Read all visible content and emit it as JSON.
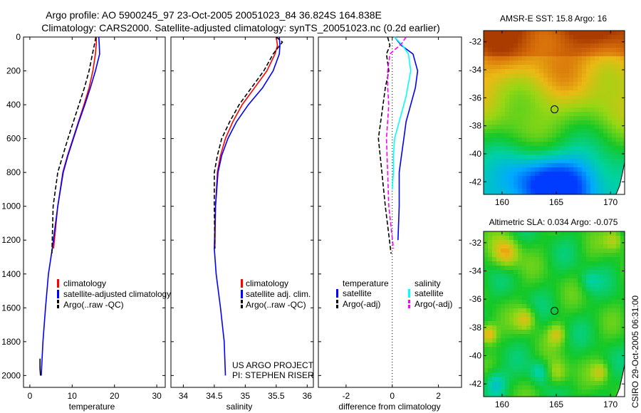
{
  "header": {
    "line1": "Argo profile: AO 5900245_97 23-Oct-2005 20051023_84 36.824S 164.838E",
    "line2": "Climatology: CARS2000. Satellite-adjusted climatology: synTS_20051023.nc (0.2d earlier)"
  },
  "side_label": "CSIRO 29-Oct-2005 06:31:00",
  "colors": {
    "climatology": "#ff0000",
    "satellite": "#0000ff",
    "argo": "#000000",
    "salinity_satellite": "#00ffff",
    "salinity_argo": "#ff00ff"
  },
  "chart_data": [
    {
      "type": "line",
      "xlabel": "temperature",
      "ylabel": "",
      "xlim": [
        -1.5,
        32
      ],
      "ylim": [
        2070,
        0
      ],
      "xticks": [
        0,
        10,
        20,
        30
      ],
      "yticks": [
        0,
        200,
        400,
        600,
        800,
        1000,
        1200,
        1400,
        1600,
        1800,
        2000
      ],
      "legend": [
        "climatology",
        "satellite-adjusted climatology",
        "Argo(..raw -QC)"
      ],
      "series": [
        {
          "name": "climatology",
          "color": "#ff0000",
          "dash": "",
          "x": [
            15.7,
            15.7,
            15.5,
            14.9,
            14.0,
            12.8,
            11.5,
            10.2,
            8.9,
            7.8,
            6.6,
            5.6
          ],
          "y": [
            0,
            40,
            100,
            200,
            300,
            400,
            500,
            600,
            700,
            800,
            1000,
            1250
          ]
        },
        {
          "name": "satellite-adjusted climatology",
          "color": "#0000ff",
          "dash": "",
          "x": [
            16.3,
            16.4,
            16.5,
            15.5,
            14.3,
            13.0,
            11.6,
            10.3,
            9.0,
            7.9,
            6.6,
            5.3,
            4.4,
            3.7,
            3.1,
            2.7
          ],
          "y": [
            0,
            40,
            100,
            200,
            300,
            400,
            500,
            600,
            700,
            800,
            1000,
            1250,
            1400,
            1600,
            1800,
            2000
          ]
        },
        {
          "name": "Argo(..raw -QC)",
          "color": "#000000",
          "dash": "6,3",
          "x": [
            15.6,
            15.3,
            14.8,
            14.0,
            12.9,
            11.6,
            10.3,
            9.0,
            7.8,
            6.6,
            5.5,
            5.2
          ],
          "y": [
            0,
            40,
            100,
            200,
            300,
            400,
            500,
            600,
            700,
            800,
            1000,
            1290
          ]
        },
        {
          "name": "",
          "color": "#000000",
          "dash": "",
          "x": [
            2.4,
            2.4,
            2.5
          ],
          "y": [
            1900,
            1960,
            2000
          ]
        }
      ]
    },
    {
      "type": "line",
      "xlabel": "salinity",
      "ylabel": "",
      "xlim": [
        33.8,
        36.1
      ],
      "ylim": [
        2070,
        0
      ],
      "xticks": [
        34,
        34.5,
        35,
        35.5,
        36
      ],
      "yticks": [
        0,
        200,
        400,
        600,
        800,
        1000,
        1200,
        1400,
        1600,
        1800,
        2000
      ],
      "legend": [
        "climatology",
        "satellite adj. clim.",
        "Argo(..raw -QC)"
      ],
      "annotations": [
        "US ARGO PROJECT",
        "PI: STEPHEN RISER"
      ],
      "series": [
        {
          "name": "climatology",
          "color": "#ff0000",
          "dash": "",
          "x": [
            35.5,
            35.52,
            35.48,
            35.35,
            35.15,
            34.95,
            34.8,
            34.68,
            34.6,
            34.55,
            34.52,
            34.51
          ],
          "y": [
            0,
            50,
            100,
            200,
            300,
            400,
            500,
            600,
            700,
            800,
            1000,
            1250
          ]
        },
        {
          "name": "satellite adj. clim.",
          "color": "#0000ff",
          "dash": "",
          "x": [
            35.55,
            35.56,
            35.55,
            35.45,
            35.28,
            35.05,
            34.86,
            34.72,
            34.62,
            34.56,
            34.52,
            34.5,
            34.53,
            34.6,
            34.66,
            34.68
          ],
          "y": [
            0,
            50,
            100,
            200,
            300,
            400,
            500,
            600,
            700,
            800,
            1000,
            1250,
            1400,
            1600,
            1800,
            2000
          ]
        },
        {
          "name": "Argo(..raw -QC)",
          "color": "#000000",
          "dash": "6,3",
          "x": [
            35.5,
            35.6,
            35.45,
            35.3,
            35.1,
            34.9,
            34.75,
            34.62,
            34.55,
            34.5,
            34.5,
            34.51
          ],
          "y": [
            0,
            30,
            100,
            200,
            300,
            400,
            500,
            600,
            700,
            800,
            1000,
            1250
          ]
        }
      ]
    },
    {
      "type": "line",
      "xlabel": "difference from climatology",
      "ylabel": "",
      "xlim": [
        -3.2,
        3
      ],
      "ylim": [
        2070,
        0
      ],
      "xticks": [
        -2,
        0,
        2
      ],
      "yticks": [
        0,
        200,
        400,
        600,
        800,
        1000,
        1200,
        1400,
        1600,
        1800,
        2000
      ],
      "legend_titles": [
        "temperature",
        "salinity"
      ],
      "legend": [
        "satellite",
        "Argo(-adj)",
        "satellite",
        "Argo(-adj)"
      ],
      "series": [
        {
          "name": "temperature satellite",
          "color": "#0000ff",
          "dash": "",
          "x": [
            0.1,
            0.4,
            0.9,
            1.1,
            1.0,
            0.8,
            0.6,
            0.5,
            0.4,
            0.3,
            0.3,
            0.25
          ],
          "y": [
            0,
            50,
            100,
            200,
            300,
            400,
            500,
            600,
            700,
            800,
            1000,
            1200
          ]
        },
        {
          "name": "salinity satellite",
          "color": "#00ffff",
          "dash": "",
          "x": [
            0.1,
            0.45,
            0.7,
            0.8,
            0.6,
            0.3,
            0.1,
            0.05,
            0.05,
            0.0
          ],
          "y": [
            0,
            50,
            100,
            200,
            350,
            500,
            600,
            700,
            800,
            900
          ]
        },
        {
          "name": "temperature Argo(-adj)",
          "color": "#000000",
          "dash": "6,3",
          "x": [
            -0.2,
            -0.1,
            -0.25,
            -0.15,
            -0.3,
            -0.4,
            -0.5,
            -0.6,
            -0.45,
            -0.3,
            -0.05
          ],
          "y": [
            0,
            50,
            100,
            200,
            300,
            400,
            500,
            600,
            800,
            1000,
            1280
          ]
        },
        {
          "name": "salinity Argo(-adj)",
          "color": "#ff00ff",
          "dash": "6,3",
          "x": [
            0.6,
            0.4,
            -0.1,
            -0.2,
            -0.2,
            -0.15,
            -0.2,
            -0.25,
            -0.2,
            -0.15,
            0.05
          ],
          "y": [
            0,
            40,
            100,
            200,
            300,
            400,
            500,
            600,
            800,
            1000,
            1250
          ]
        }
      ]
    },
    {
      "type": "heatmap",
      "title": "AMSR-E SST: 15.8 Argo: 16",
      "xlim": [
        158.3,
        171.3
      ],
      "ylim": [
        -42.9,
        -31.2
      ],
      "xticks": [
        160,
        165,
        170
      ],
      "yticks": [
        -32,
        -34,
        -36,
        -38,
        -40,
        -42
      ],
      "marker": {
        "lon": 164.838,
        "lat": -36.824
      }
    },
    {
      "type": "heatmap",
      "title": "Altimetric SLA: 0.034 Argo: -0.075",
      "xlim": [
        158.3,
        171.3
      ],
      "ylim": [
        -42.9,
        -31.2
      ],
      "xticks": [
        160,
        165,
        170
      ],
      "yticks": [
        -32,
        -34,
        -36,
        -38,
        -40,
        -42
      ],
      "marker": {
        "lon": 164.838,
        "lat": -36.824
      }
    }
  ]
}
